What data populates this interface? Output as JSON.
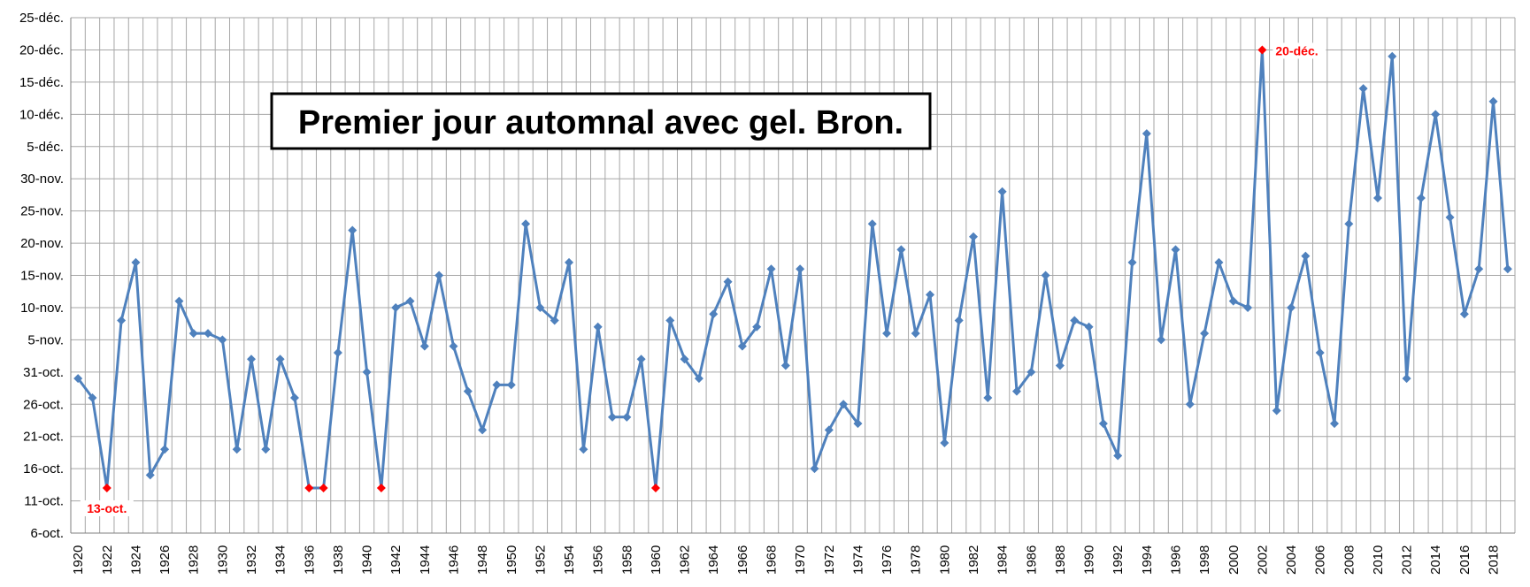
{
  "chart_data": {
    "type": "line",
    "title": "Premier jour automnal avec gel. Bron.",
    "xlabel": "",
    "ylabel": "",
    "x_ticks": [
      "1920",
      "1922",
      "1924",
      "1926",
      "1928",
      "1930",
      "1932",
      "1934",
      "1936",
      "1938",
      "1940",
      "1942",
      "1944",
      "1946",
      "1948",
      "1950",
      "1952",
      "1954",
      "1956",
      "1958",
      "1960",
      "1962",
      "1964",
      "1966",
      "1968",
      "1970",
      "1972",
      "1974",
      "1976",
      "1978",
      "1980",
      "1982",
      "1984",
      "1986",
      "1988",
      "1990",
      "1992",
      "1994",
      "1996",
      "1998",
      "2000",
      "2002",
      "2004",
      "2006",
      "2008",
      "2010",
      "2012",
      "2014",
      "2016",
      "2018"
    ],
    "y_ticks": [
      "6-oct.",
      "11-oct.",
      "16-oct.",
      "21-oct.",
      "26-oct.",
      "31-oct.",
      "5-nov.",
      "10-nov.",
      "15-nov.",
      "20-nov.",
      "25-nov.",
      "30-nov.",
      "5-déc.",
      "10-déc.",
      "15-déc.",
      "20-déc.",
      "25-déc."
    ],
    "ylim": [
      "6-oct.",
      "25-déc."
    ],
    "grid": true,
    "series_color": "#4f81bd",
    "highlight_color": "#ff0000",
    "series": [
      {
        "x": [
          1920,
          1921,
          1922,
          1923,
          1924,
          1925,
          1926,
          1927,
          1928,
          1929,
          1930,
          1931,
          1932,
          1933,
          1934,
          1935,
          1936,
          1937,
          1938,
          1939,
          1940,
          1941,
          1942,
          1943,
          1944,
          1945,
          1946,
          1947,
          1948,
          1949,
          1950,
          1951,
          1952,
          1953,
          1954,
          1955,
          1956,
          1957,
          1958,
          1959,
          1960,
          1961,
          1962,
          1963,
          1964,
          1965,
          1966,
          1967,
          1968,
          1969,
          1970,
          1971,
          1972,
          1973,
          1974,
          1975,
          1976,
          1977,
          1978,
          1979,
          1980,
          1981,
          1982,
          1983,
          1984,
          1985,
          1986,
          1987,
          1988,
          1989,
          1990,
          1991,
          1992,
          1993,
          1994,
          1995,
          1996,
          1997,
          1998,
          1999,
          2000,
          2001,
          2002,
          2003,
          2004,
          2005,
          2006,
          2007,
          2008,
          2009,
          2010,
          2011,
          2012,
          2013,
          2014,
          2015,
          2016,
          2017,
          2018,
          2019
        ],
        "y": [
          "30-oct.",
          "27-oct.",
          "13-oct.",
          "8-nov.",
          "17-nov.",
          "15-oct.",
          "19-oct.",
          "11-nov.",
          "6-nov.",
          "6-nov.",
          "5-nov.",
          "19-oct.",
          "2-nov.",
          "19-oct.",
          "2-nov.",
          "27-oct.",
          "13-oct.",
          "13-oct.",
          "3-nov.",
          "22-nov.",
          "31-oct.",
          "13-oct.",
          "10-nov.",
          "11-nov.",
          "4-nov.",
          "15-nov.",
          "4-nov.",
          "28-oct.",
          "22-oct.",
          "29-oct.",
          "29-oct.",
          "23-nov.",
          "10-nov.",
          "8-nov.",
          "17-nov.",
          "19-oct.",
          "7-nov.",
          "24-oct.",
          "24-oct.",
          "2-nov.",
          "13-oct.",
          "8-nov.",
          "2-nov.",
          "30-oct.",
          "9-nov.",
          "14-nov.",
          "4-nov.",
          "7-nov.",
          "16-nov.",
          "1-nov.",
          "16-nov.",
          "16-oct.",
          "22-oct.",
          "26-oct.",
          "23-oct.",
          "23-nov.",
          "6-nov.",
          "19-nov.",
          "6-nov.",
          "12-nov.",
          "20-oct.",
          "8-nov.",
          "21-nov.",
          "27-oct.",
          "28-nov.",
          "28-oct.",
          "31-oct.",
          "15-nov.",
          "1-nov.",
          "8-nov.",
          "7-nov.",
          "23-oct.",
          "18-oct.",
          "17-nov.",
          "7-déc.",
          "5-nov.",
          "19-nov.",
          "26-oct.",
          "6-nov.",
          "17-nov.",
          "11-nov.",
          "10-nov.",
          "20-déc.",
          "25-oct.",
          "10-nov.",
          "18-nov.",
          "3-nov.",
          "23-oct.",
          "23-nov.",
          "14-déc.",
          "27-nov.",
          "19-déc.",
          "30-oct.",
          "27-nov.",
          "10-déc.",
          "24-nov.",
          "9-nov.",
          "16-nov.",
          "12-déc.",
          "16-nov."
        ]
      }
    ],
    "highlighted_x": [
      1922,
      1936,
      1937,
      1941,
      1960,
      2002
    ],
    "annotations": [
      {
        "text": "13-oct.",
        "x": 1922
      },
      {
        "text": "20-déc.",
        "x": 2002
      }
    ]
  }
}
